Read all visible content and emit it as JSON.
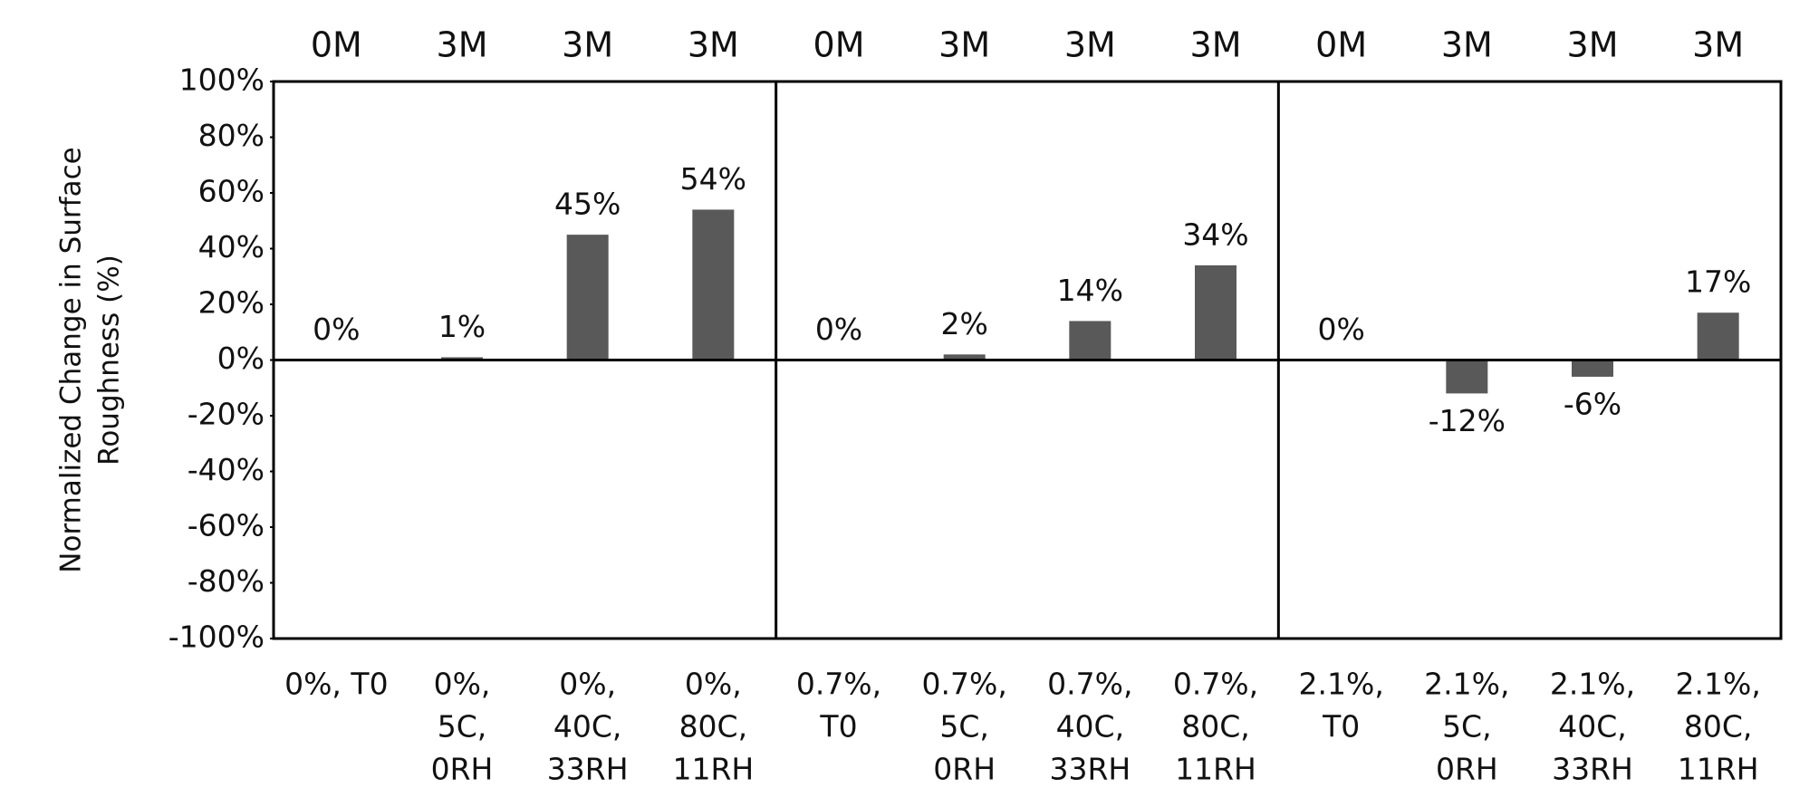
{
  "chart_data": {
    "type": "bar",
    "y_label": [
      "Normalized Change in Surface",
      "Roughness (%)"
    ],
    "top_labels": [
      "0M",
      "3M",
      "3M",
      "3M",
      "0M",
      "3M",
      "3M",
      "3M",
      "0M",
      "3M",
      "3M",
      "3M"
    ],
    "categories": [
      [
        "0%, T0"
      ],
      [
        "0%,",
        "5C,",
        "0RH"
      ],
      [
        "0%,",
        "40C,",
        "33RH"
      ],
      [
        "0%,",
        "80C,",
        "11RH"
      ],
      [
        "0.7%,",
        "T0"
      ],
      [
        "0.7%,",
        "5C,",
        "0RH"
      ],
      [
        "0.7%,",
        "40C,",
        "33RH"
      ],
      [
        "0.7%,",
        "80C,",
        "11RH"
      ],
      [
        "2.1%,",
        "T0"
      ],
      [
        "2.1%,",
        "5C,",
        "0RH"
      ],
      [
        "2.1%,",
        "40C,",
        "33RH"
      ],
      [
        "2.1%,",
        "80C,",
        "11RH"
      ]
    ],
    "values": [
      0,
      1,
      45,
      54,
      0,
      2,
      14,
      34,
      0,
      -12,
      -6,
      17
    ],
    "value_labels": [
      "0%",
      "1%",
      "45%",
      "54%",
      "0%",
      "2%",
      "14%",
      "34%",
      "0%",
      "-12%",
      "-6%",
      "17%"
    ],
    "color": "#595959",
    "ylim": [
      -100,
      100
    ],
    "yticks": [
      {
        "value": -100,
        "label": "-100%"
      },
      {
        "value": -80,
        "label": "-80%"
      },
      {
        "value": -60,
        "label": "-60%"
      },
      {
        "value": -40,
        "label": "-40%"
      },
      {
        "value": -20,
        "label": "-20%"
      },
      {
        "value": 0,
        "label": "0%"
      },
      {
        "value": 20,
        "label": "20%"
      },
      {
        "value": 40,
        "label": "40%"
      },
      {
        "value": 60,
        "label": "60%"
      },
      {
        "value": 80,
        "label": "80%"
      },
      {
        "value": 100,
        "label": "100%"
      }
    ]
  }
}
